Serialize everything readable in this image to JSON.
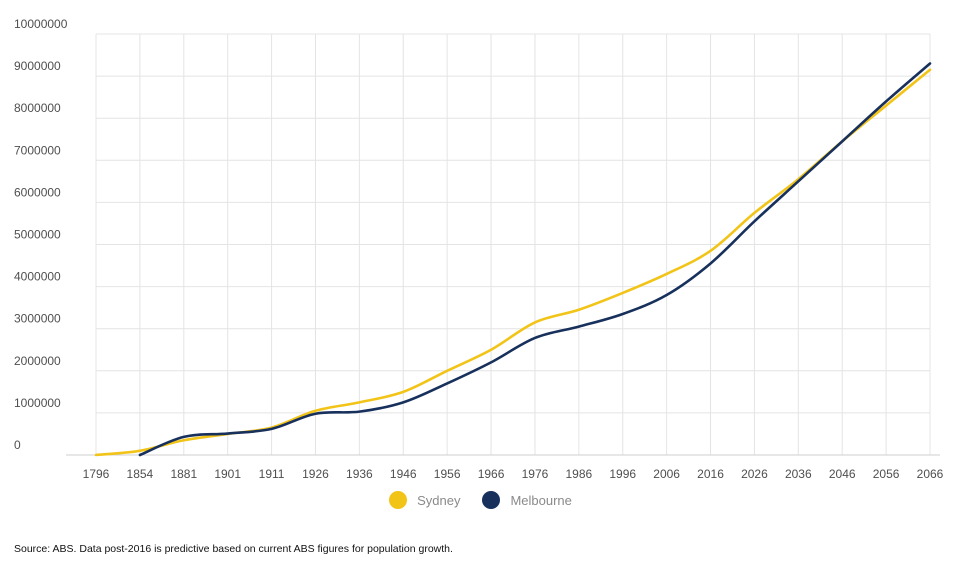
{
  "chart_data": {
    "type": "line",
    "title": "",
    "xlabel": "",
    "ylabel": "",
    "ylim": [
      0,
      10000000
    ],
    "yticks": [
      "0",
      "1000000",
      "2000000",
      "3000000",
      "4000000",
      "5000000",
      "6000000",
      "7000000",
      "8000000",
      "9000000",
      "10000000"
    ],
    "xticks": [
      "1796",
      "1854",
      "1881",
      "1901",
      "1911",
      "1926",
      "1936",
      "1946",
      "1956",
      "1966",
      "1976",
      "1986",
      "1996",
      "2006",
      "2016",
      "2026",
      "2036",
      "2046",
      "2056",
      "2066"
    ],
    "grid": true,
    "legend_position": "bottom-center",
    "series": [
      {
        "name": "Sydney",
        "color": "#f2c418",
        "x": [
          "1796",
          "1854",
          "1881",
          "1901",
          "1911",
          "1926",
          "1936",
          "1946",
          "1956",
          "1966",
          "1976",
          "1986",
          "1996",
          "2006",
          "2016",
          "2026",
          "2036",
          "2046",
          "2056",
          "2066"
        ],
        "values": [
          0,
          100000,
          350000,
          500000,
          650000,
          1050000,
          1250000,
          1500000,
          2000000,
          2500000,
          3150000,
          3450000,
          3850000,
          4300000,
          4850000,
          5750000,
          6550000,
          7450000,
          8300000,
          9150000
        ]
      },
      {
        "name": "Melbourne",
        "color": "#17305c",
        "x": [
          "1854",
          "1881",
          "1901",
          "1911",
          "1926",
          "1936",
          "1946",
          "1956",
          "1966",
          "1976",
          "1986",
          "1996",
          "2006",
          "2016",
          "2026",
          "2036",
          "2046",
          "2056",
          "2066"
        ],
        "values": [
          0,
          430000,
          510000,
          620000,
          980000,
          1030000,
          1250000,
          1700000,
          2200000,
          2780000,
          3050000,
          3350000,
          3800000,
          4550000,
          5550000,
          6500000,
          7450000,
          8400000,
          9300000
        ]
      }
    ]
  },
  "source_note": "Source: ABS. Data post-2016 is predictive based on current ABS figures for population growth."
}
